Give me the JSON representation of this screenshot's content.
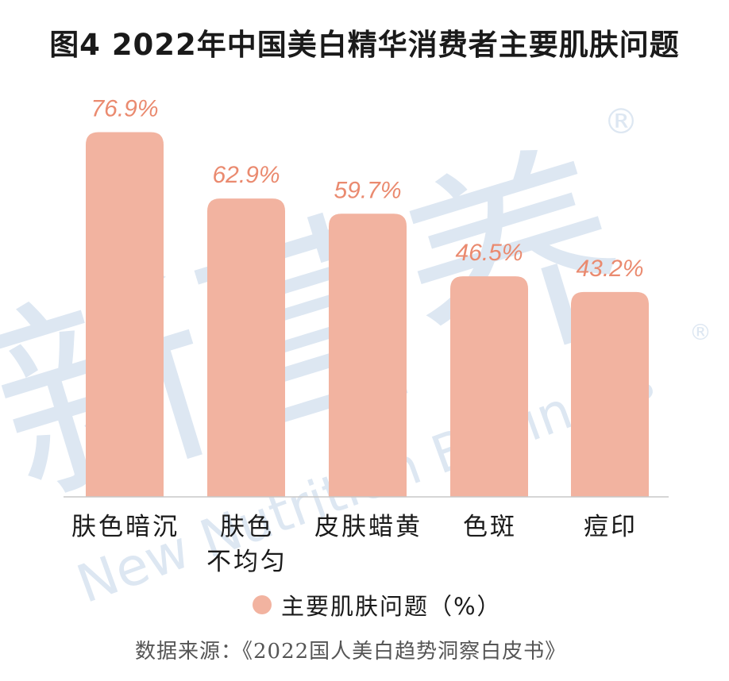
{
  "chart_data": {
    "type": "bar",
    "title": "图4 2022年中国美白精华消费者主要肌肤问题",
    "categories": [
      "肤色暗沉",
      "肤色不均匀",
      "皮肤蜡黄",
      "色斑",
      "痘印"
    ],
    "category_lines": [
      [
        "肤色暗沉"
      ],
      [
        "肤色",
        "不均匀"
      ],
      [
        "皮肤蜡黄"
      ],
      [
        "色斑"
      ],
      [
        "痘印"
      ]
    ],
    "series": [
      {
        "name": "主要肌肤问题（%）",
        "values": [
          76.9,
          62.9,
          59.7,
          46.5,
          43.2
        ],
        "labels": [
          "76.9%",
          "62.9%",
          "59.7%",
          "46.5%",
          "43.2%"
        ]
      }
    ],
    "ylim": [
      0,
      100
    ],
    "grid": false,
    "legend_position": "bottom",
    "bar_color": "#f2b3a0",
    "label_color": "#ea8a6f"
  },
  "source": "数据来源：《2022国人美白趋势洞察白皮书》",
  "watermark": {
    "main": "新营养",
    "sub": "New Nutrition Business",
    "mark": "®",
    "color": "#dde7f2"
  }
}
